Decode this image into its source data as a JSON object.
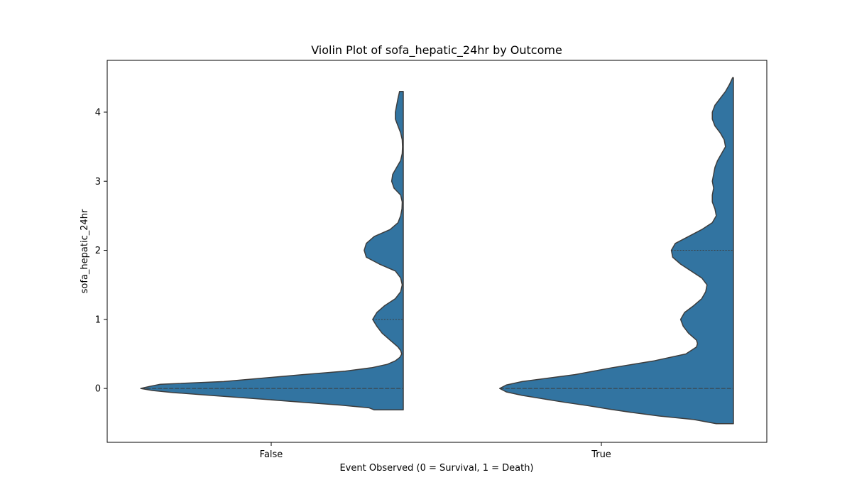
{
  "chart_data": {
    "type": "violin",
    "title": "Violin Plot of sofa_hepatic_24hr by Outcome",
    "xlabel": "Event Observed (0 = Survival, 1 = Death)",
    "ylabel": "sofa_hepatic_24hr",
    "categories": [
      "False",
      "True"
    ],
    "ylim": [
      -0.78,
      4.75
    ],
    "yticks": [
      0,
      1,
      2,
      3,
      4
    ],
    "split": true,
    "side": "left",
    "inner": "quartile",
    "grid": false,
    "fill_color": "#3274a1",
    "edge_color": "#3d3d3d",
    "violins": [
      {
        "category": "False",
        "y_min": -0.31,
        "y_max": 4.3,
        "quartiles": {
          "q1": 0,
          "median": 0,
          "q3": 1
        },
        "density": [
          [
            -0.31,
            0.11
          ],
          [
            -0.28,
            0.13
          ],
          [
            -0.24,
            0.24
          ],
          [
            -0.2,
            0.38
          ],
          [
            -0.15,
            0.55
          ],
          [
            -0.1,
            0.73
          ],
          [
            -0.06,
            0.87
          ],
          [
            -0.03,
            0.95
          ],
          [
            0,
            0.994
          ],
          [
            0.03,
            0.96
          ],
          [
            0.06,
            0.92
          ],
          [
            0.1,
            0.68
          ],
          [
            0.15,
            0.53
          ],
          [
            0.2,
            0.38
          ],
          [
            0.25,
            0.22
          ],
          [
            0.3,
            0.12
          ],
          [
            0.35,
            0.06
          ],
          [
            0.4,
            0.03
          ],
          [
            0.45,
            0.013
          ],
          [
            0.5,
            0.006
          ],
          [
            0.55,
            0.01
          ],
          [
            0.6,
            0.02
          ],
          [
            0.7,
            0.05
          ],
          [
            0.8,
            0.08
          ],
          [
            0.9,
            0.1
          ],
          [
            1.0,
            0.116
          ],
          [
            1.1,
            0.1
          ],
          [
            1.2,
            0.07
          ],
          [
            1.3,
            0.03
          ],
          [
            1.4,
            0.01
          ],
          [
            1.5,
            0.004
          ],
          [
            1.6,
            0.01
          ],
          [
            1.7,
            0.03
          ],
          [
            1.8,
            0.09
          ],
          [
            1.9,
            0.14
          ],
          [
            2.0,
            0.148
          ],
          [
            2.1,
            0.14
          ],
          [
            2.2,
            0.11
          ],
          [
            2.3,
            0.05
          ],
          [
            2.4,
            0.02
          ],
          [
            2.5,
            0.01
          ],
          [
            2.6,
            0.005
          ],
          [
            2.7,
            0.004
          ],
          [
            2.8,
            0.01
          ],
          [
            2.9,
            0.035
          ],
          [
            3.0,
            0.044
          ],
          [
            3.1,
            0.04
          ],
          [
            3.2,
            0.025
          ],
          [
            3.3,
            0.01
          ],
          [
            3.4,
            0.004
          ],
          [
            3.5,
            0.003
          ],
          [
            3.6,
            0.004
          ],
          [
            3.7,
            0.01
          ],
          [
            3.8,
            0.02
          ],
          [
            3.9,
            0.03
          ],
          [
            4.0,
            0.03
          ],
          [
            4.1,
            0.025
          ],
          [
            4.2,
            0.02
          ],
          [
            4.3,
            0.014
          ]
        ]
      },
      {
        "category": "True",
        "y_min": -0.51,
        "y_max": 4.5,
        "quartiles": {
          "q1": 0,
          "median": 0,
          "q3": 2
        },
        "density": [
          [
            -0.51,
            0.065
          ],
          [
            -0.45,
            0.15
          ],
          [
            -0.4,
            0.28
          ],
          [
            -0.35,
            0.38
          ],
          [
            -0.3,
            0.47
          ],
          [
            -0.25,
            0.55
          ],
          [
            -0.2,
            0.64
          ],
          [
            -0.15,
            0.72
          ],
          [
            -0.1,
            0.8
          ],
          [
            -0.05,
            0.86
          ],
          [
            0,
            0.885
          ],
          [
            0.05,
            0.86
          ],
          [
            0.1,
            0.8
          ],
          [
            0.15,
            0.7
          ],
          [
            0.2,
            0.6
          ],
          [
            0.3,
            0.46
          ],
          [
            0.4,
            0.3
          ],
          [
            0.5,
            0.18
          ],
          [
            0.6,
            0.14
          ],
          [
            0.65,
            0.136
          ],
          [
            0.7,
            0.14
          ],
          [
            0.8,
            0.17
          ],
          [
            0.9,
            0.19
          ],
          [
            1.0,
            0.2
          ],
          [
            1.1,
            0.185
          ],
          [
            1.2,
            0.15
          ],
          [
            1.3,
            0.12
          ],
          [
            1.4,
            0.105
          ],
          [
            1.5,
            0.1
          ],
          [
            1.6,
            0.12
          ],
          [
            1.7,
            0.16
          ],
          [
            1.8,
            0.2
          ],
          [
            1.9,
            0.23
          ],
          [
            2.0,
            0.235
          ],
          [
            2.1,
            0.22
          ],
          [
            2.2,
            0.17
          ],
          [
            2.3,
            0.12
          ],
          [
            2.4,
            0.08
          ],
          [
            2.5,
            0.065
          ],
          [
            2.6,
            0.07
          ],
          [
            2.7,
            0.08
          ],
          [
            2.8,
            0.08
          ],
          [
            2.9,
            0.075
          ],
          [
            3.0,
            0.08
          ],
          [
            3.1,
            0.075
          ],
          [
            3.2,
            0.07
          ],
          [
            3.3,
            0.06
          ],
          [
            3.4,
            0.045
          ],
          [
            3.5,
            0.03
          ],
          [
            3.6,
            0.035
          ],
          [
            3.7,
            0.05
          ],
          [
            3.8,
            0.07
          ],
          [
            3.9,
            0.08
          ],
          [
            4.0,
            0.08
          ],
          [
            4.1,
            0.07
          ],
          [
            4.2,
            0.05
          ],
          [
            4.3,
            0.03
          ],
          [
            4.4,
            0.015
          ],
          [
            4.5,
            0.003
          ]
        ]
      }
    ]
  }
}
